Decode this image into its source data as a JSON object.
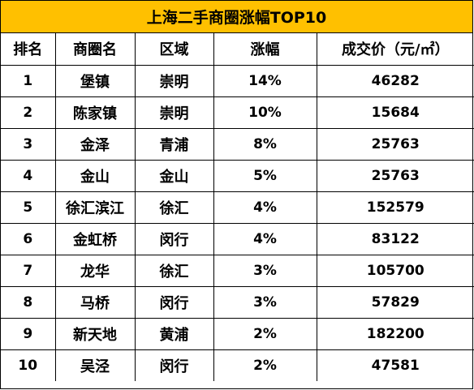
{
  "title": "上海二手商圈涨幅TOP10",
  "colors": {
    "header_fill": "#ffc000",
    "border": "#000000",
    "text": "#000000"
  },
  "columns": [
    "排名",
    "商圈名",
    "区域",
    "涨幅",
    "成交价（元/㎡）"
  ],
  "rows": [
    {
      "rank": "1",
      "name": "堡镇",
      "district": "崇明",
      "growth": "14%",
      "price": "46282"
    },
    {
      "rank": "2",
      "name": "陈家镇",
      "district": "崇明",
      "growth": "10%",
      "price": "15684"
    },
    {
      "rank": "3",
      "name": "金泽",
      "district": "青浦",
      "growth": "8%",
      "price": "25763"
    },
    {
      "rank": "4",
      "name": "金山",
      "district": "金山",
      "growth": "5%",
      "price": "25763"
    },
    {
      "rank": "5",
      "name": "徐汇滨江",
      "district": "徐汇",
      "growth": "4%",
      "price": "152579"
    },
    {
      "rank": "6",
      "name": "金虹桥",
      "district": "闵行",
      "growth": "4%",
      "price": "83122"
    },
    {
      "rank": "7",
      "name": "龙华",
      "district": "徐汇",
      "growth": "3%",
      "price": "105700"
    },
    {
      "rank": "8",
      "name": "马桥",
      "district": "闵行",
      "growth": "3%",
      "price": "57829"
    },
    {
      "rank": "9",
      "name": "新天地",
      "district": "黄浦",
      "growth": "2%",
      "price": "182200"
    },
    {
      "rank": "10",
      "name": "吴泾",
      "district": "闵行",
      "growth": "2%",
      "price": "47581"
    }
  ]
}
